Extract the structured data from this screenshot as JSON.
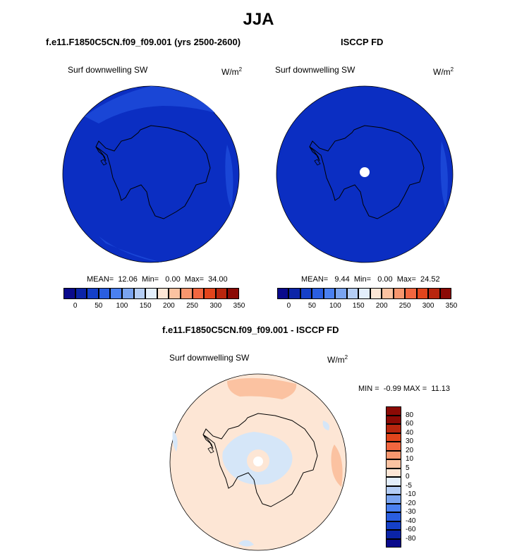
{
  "page": {
    "title": "JJA"
  },
  "panel_left": {
    "case_title": "f.e11.F1850C5CN.f09_f09.001 (yrs 2500-2600)",
    "field": "Surf downwelling SW",
    "unit": "W/m",
    "unit_sup": "2",
    "stats": "MEAN=  12.06  Min=   0.00  Max=  34.00"
  },
  "panel_right": {
    "case_title": "ISCCP FD",
    "field": "Surf downwelling SW",
    "unit": "W/m",
    "unit_sup": "2",
    "stats": "MEAN=   9.44  Min=   0.00  Max=  24.52"
  },
  "panel_diff": {
    "case_title": "f.e11.F1850C5CN.f09_f09.001 - ISCCP FD",
    "field": "Surf downwelling SW",
    "unit": "W/m",
    "unit_sup": "2",
    "stats": "MIN =  -0.99 MAX =  11.13"
  },
  "colorbar_abs": {
    "colors": [
      "#0a0a8c",
      "#0b24a8",
      "#1540c8",
      "#2a5ee0",
      "#4a80f0",
      "#7aa4f0",
      "#b4cdf5",
      "#e3eefb",
      "#fde6d5",
      "#fbc2a1",
      "#f7966e",
      "#f2663f",
      "#e2451c",
      "#b8260e",
      "#8b0a05"
    ],
    "labels": [
      "0",
      "50",
      "100",
      "150",
      "200",
      "250",
      "300",
      "350"
    ]
  },
  "colorbar_diff": {
    "colors": [
      "#8b0a05",
      "#b8260e",
      "#e2451c",
      "#f2663f",
      "#f7966e",
      "#fbc2a1",
      "#fde6d5",
      "#e3eefb",
      "#b4cdf5",
      "#7aa4f0",
      "#4a80f0",
      "#2a5ee0",
      "#1540c8",
      "#0b24a8",
      "#0a0a8c"
    ],
    "labels": [
      "80",
      "60",
      "40",
      "30",
      "20",
      "10",
      "5",
      "0",
      "-5",
      "-10",
      "-20",
      "-30",
      "-40",
      "-60",
      "-80"
    ]
  },
  "map_colors": {
    "abs_fill": "#0b2ec2",
    "abs_light": "#1a46d6",
    "diff_fill": "#fde6d5",
    "diff_warm": "#fbc2a1",
    "diff_cool": "#d5e6f8",
    "pole_hole": "#ffffff"
  }
}
